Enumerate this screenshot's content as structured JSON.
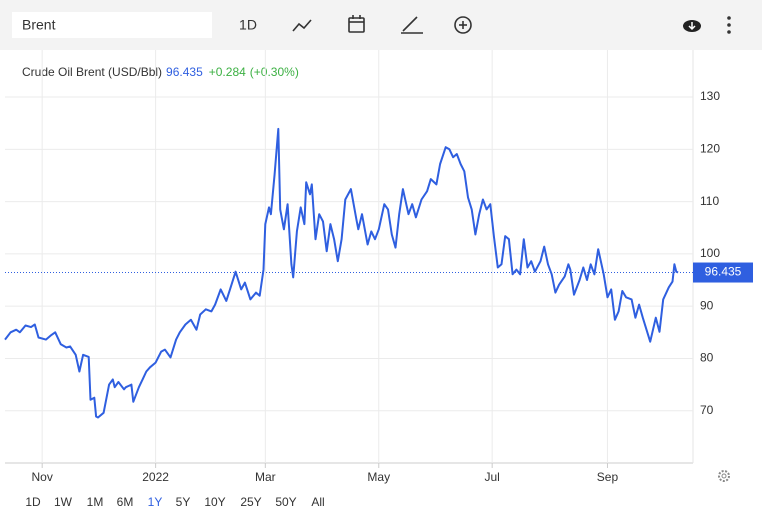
{
  "search": "Brent",
  "toolbar": {
    "interval": "1D"
  },
  "ranges": {
    "options": [
      "1D",
      "1W",
      "1M",
      "6M",
      "1Y",
      "5Y",
      "10Y",
      "25Y",
      "50Y",
      "All"
    ],
    "selected": "1Y",
    "color": "#2f5fe0"
  },
  "chart_data": {
    "type": "line",
    "series": [
      {
        "name": "Crude Oil Brent (USD/Bbl)",
        "color": "#2f5fe0",
        "x": [
          11,
          14,
          17,
          19,
          22,
          25,
          27,
          29,
          33,
          36,
          38,
          41,
          44,
          46,
          49,
          51,
          53,
          56,
          57,
          59,
          60,
          61,
          64,
          67,
          69,
          70,
          72,
          75,
          76,
          79,
          80,
          83,
          85,
          87,
          89,
          92,
          95,
          97,
          100,
          103,
          105,
          108,
          111,
          114,
          116,
          119,
          122,
          124,
          127,
          130,
          132,
          135,
          138,
          140,
          143,
          146,
          148,
          150,
          151,
          153,
          154,
          156,
          158,
          159,
          161,
          163,
          165,
          166,
          168,
          170,
          172,
          173,
          175,
          176,
          178,
          180,
          182,
          184,
          186,
          188,
          190,
          192,
          194,
          197,
          200,
          201,
          203,
          206,
          208,
          210,
          212,
          215,
          217,
          219,
          221,
          223,
          225,
          228,
          230,
          232,
          235,
          238,
          240,
          243,
          245,
          248,
          250,
          252,
          254,
          256,
          258,
          260,
          262,
          264,
          266,
          268,
          270,
          272,
          274,
          276,
          278,
          280,
          282,
          284,
          286,
          288,
          290,
          292,
          294,
          296,
          299,
          301,
          303,
          305,
          307,
          309,
          312,
          314,
          315,
          317,
          320,
          322,
          324,
          326,
          328,
          330,
          333,
          335,
          337,
          339,
          341,
          343,
          345,
          348,
          350,
          352,
          354,
          356,
          358,
          361,
          363,
          365,
          368,
          370,
          371,
          372,
          373
        ],
        "values": [
          83.6,
          85,
          85.5,
          85,
          86.3,
          86,
          86.5,
          84,
          83.6,
          84.5,
          85,
          82.7,
          82.1,
          82.3,
          80.7,
          77.5,
          80.7,
          80.3,
          72.1,
          72.5,
          68.9,
          68.7,
          69.6,
          75,
          76,
          74.5,
          75.5,
          74.1,
          74.5,
          75,
          71.7,
          74.5,
          76,
          77.5,
          78.3,
          79.2,
          81.3,
          81.7,
          80.2,
          83.6,
          85,
          86.5,
          87.4,
          85.5,
          88.4,
          89.4,
          89,
          90.3,
          93.2,
          91,
          93.2,
          96.6,
          93.2,
          94.5,
          91.3,
          92.6,
          92,
          97,
          105.7,
          108.9,
          107.6,
          115.2,
          123.9,
          108.5,
          104.7,
          109.5,
          98,
          95.5,
          104.3,
          108.9,
          105.7,
          113.7,
          111.4,
          113.3,
          102.8,
          107.6,
          106.2,
          100.5,
          105.7,
          102.8,
          98.6,
          102.8,
          110.4,
          112.4,
          106.6,
          104.7,
          107.6,
          101.8,
          104.3,
          102.8,
          104.7,
          109.5,
          108.5,
          103.7,
          101.2,
          107.6,
          112.4,
          107.6,
          109.5,
          107,
          110.4,
          112,
          114.3,
          113.3,
          117.2,
          120.4,
          120,
          118.5,
          119.1,
          117.2,
          115.8,
          110.8,
          108.5,
          103.7,
          107.6,
          110.4,
          108.5,
          109.5,
          103.2,
          97.4,
          98,
          103.4,
          102.8,
          96.1,
          97,
          96.1,
          102.8,
          97.4,
          98.6,
          96.6,
          98.6,
          101.4,
          98,
          96.1,
          92.6,
          94.1,
          95.7,
          98,
          97,
          92.2,
          95,
          97.4,
          95,
          98,
          96.1,
          100.9,
          96.1,
          91.7,
          93.2,
          87.4,
          89,
          92.9,
          91.7,
          91.3,
          87.8,
          90.3,
          87.8,
          85.5,
          83.2,
          87.8,
          85.1,
          91.3,
          93.6,
          94.7,
          98,
          96.6,
          96.435
        ]
      }
    ],
    "price": 96.435,
    "change": {
      "value": 0.284,
      "label": "+0.284"
    },
    "change_pct": {
      "value": 0.3,
      "label": "(+0.30%)"
    },
    "change_color": "#3cb043",
    "xlim": [
      11,
      381
    ],
    "xticks": [
      {
        "value": 31,
        "label": "Nov"
      },
      {
        "value": 92,
        "label": "2022"
      },
      {
        "value": 151,
        "label": "Mar"
      },
      {
        "value": 212,
        "label": "May"
      },
      {
        "value": 273,
        "label": "Jul"
      },
      {
        "value": 335,
        "label": "Sep"
      }
    ],
    "ylim": [
      60,
      139
    ],
    "yticks": [
      70,
      80,
      90,
      100,
      110,
      120,
      130
    ],
    "grid": true
  }
}
